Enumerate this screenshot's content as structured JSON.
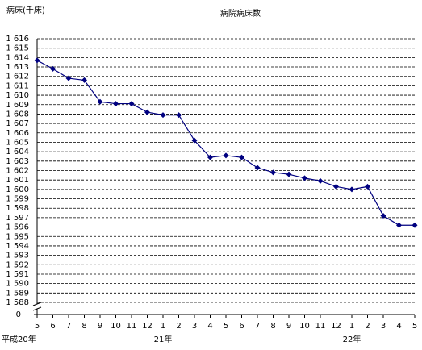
{
  "chart_data": {
    "type": "line",
    "title": "病院病床数",
    "y_label": "病床(千床)",
    "categories": [
      "5",
      "6",
      "7",
      "8",
      "9",
      "10",
      "11",
      "12",
      "1",
      "2",
      "3",
      "4",
      "5",
      "6",
      "7",
      "8",
      "9",
      "10",
      "11",
      "12",
      "1",
      "2",
      "3",
      "4",
      "5"
    ],
    "x_groups": [
      "平成20年",
      null,
      null,
      null,
      null,
      null,
      null,
      null,
      "21年",
      null,
      null,
      null,
      null,
      null,
      null,
      null,
      null,
      null,
      null,
      null,
      "22年",
      null,
      null,
      null,
      null
    ],
    "values": [
      1613.7,
      1612.8,
      1611.8,
      1611.6,
      1609.3,
      1609.1,
      1609.1,
      1608.2,
      1607.9,
      1607.9,
      1605.2,
      1603.4,
      1603.6,
      1603.4,
      1602.3,
      1601.8,
      1601.6,
      1601.2,
      1600.9,
      1600.3,
      1600.0,
      1600.3,
      1597.2,
      1596.2,
      1596.2
    ],
    "color": "#000080",
    "ylim": [
      1588,
      1616
    ],
    "yticks": [
      {
        "value": 1588,
        "label": "1 588"
      },
      {
        "value": 1589,
        "label": "1 589"
      },
      {
        "value": 1590,
        "label": "1 590"
      },
      {
        "value": 1591,
        "label": "1 591"
      },
      {
        "value": 1592,
        "label": "1 592"
      },
      {
        "value": 1593,
        "label": "1 593"
      },
      {
        "value": 1594,
        "label": "1 594"
      },
      {
        "value": 1595,
        "label": "1 595"
      },
      {
        "value": 1596,
        "label": "1 596"
      },
      {
        "value": 1597,
        "label": "1 597"
      },
      {
        "value": 1598,
        "label": "1 598"
      },
      {
        "value": 1599,
        "label": "1 599"
      },
      {
        "value": 1600,
        "label": "1 600"
      },
      {
        "value": 1601,
        "label": "1 601"
      },
      {
        "value": 1602,
        "label": "1 602"
      },
      {
        "value": 1603,
        "label": "1 603"
      },
      {
        "value": 1604,
        "label": "1 604"
      },
      {
        "value": 1605,
        "label": "1 605"
      },
      {
        "value": 1606,
        "label": "1 606"
      },
      {
        "value": 1607,
        "label": "1 607"
      },
      {
        "value": 1608,
        "label": "1 608"
      },
      {
        "value": 1609,
        "label": "1 609"
      },
      {
        "value": 1610,
        "label": "1 610"
      },
      {
        "value": 1611,
        "label": "1 611"
      },
      {
        "value": 1612,
        "label": "1 612"
      },
      {
        "value": 1613,
        "label": "1 613"
      },
      {
        "value": 1614,
        "label": "1 614"
      },
      {
        "value": 1615,
        "label": "1 615"
      },
      {
        "value": 1616,
        "label": "1 616"
      }
    ],
    "ybreak": {
      "value": 0,
      "label": "0"
    },
    "grid": true
  }
}
